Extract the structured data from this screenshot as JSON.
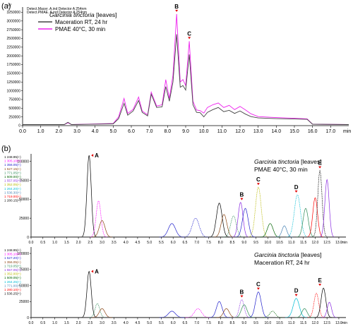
{
  "chart_data": [
    {
      "panel": "(a)",
      "type": "line",
      "xunit": "min",
      "xlim": [
        0,
        18
      ],
      "xticks": [
        "0.0",
        "1.0",
        "2.0",
        "3.0",
        "4.0",
        "5.0",
        "6.0",
        "7.0",
        "8.0",
        "9.0",
        "10.0",
        "11.0",
        "12.0",
        "13.0",
        "14.0",
        "15.0",
        "16.0",
        "17.0"
      ],
      "yunit": "uV",
      "ylim": [
        0,
        3400000
      ],
      "yticks": [
        "0",
        "250000",
        "500000",
        "750000",
        "1000000",
        "1250000",
        "1500000",
        "1750000",
        "2000000",
        "2250000",
        "2500000",
        "2750000",
        "3000000",
        "3250000"
      ],
      "header_lines": [
        "Detect.Macer. A.ind Detector A 254nm",
        "Detect.PMAE. A.ind Detector A 254nm"
      ],
      "legend_title_species": "Garcinia tinctoria",
      "legend_title_rest": " [leaves]",
      "series": [
        {
          "name": "Maceration RT, 24 hr",
          "color": "#444444",
          "x": [
            0,
            2.3,
            2.5,
            2.7,
            5.0,
            5.3,
            5.6,
            5.8,
            6.1,
            6.4,
            6.6,
            6.9,
            7.1,
            7.4,
            7.7,
            7.9,
            8.1,
            8.3,
            8.5,
            8.7,
            8.85,
            9.0,
            9.2,
            9.4,
            9.6,
            9.8,
            10.0,
            10.2,
            10.5,
            10.8,
            11.1,
            11.4,
            11.7,
            12.0,
            12.3,
            12.6,
            13.0,
            14.0,
            15.0,
            15.7,
            16.0,
            18.0
          ],
          "y": [
            30000,
            30000,
            95000,
            30000,
            50000,
            200000,
            640000,
            300000,
            420000,
            720000,
            380000,
            280000,
            900000,
            520000,
            540000,
            1120000,
            700000,
            1250000,
            2620000,
            1100000,
            1150000,
            1020000,
            2040000,
            600000,
            380000,
            370000,
            250000,
            380000,
            460000,
            520000,
            400000,
            440000,
            350000,
            420000,
            330000,
            260000,
            220000,
            200000,
            190000,
            180000,
            40000,
            30000
          ]
        },
        {
          "name": "PMAE 40°C, 30 min",
          "color": "#ee22ee",
          "x": [
            0,
            2.3,
            2.5,
            2.7,
            5.0,
            5.3,
            5.6,
            5.8,
            6.1,
            6.4,
            6.6,
            6.9,
            7.1,
            7.4,
            7.7,
            7.9,
            8.1,
            8.3,
            8.5,
            8.7,
            8.85,
            9.0,
            9.2,
            9.4,
            9.6,
            9.8,
            10.0,
            10.2,
            10.5,
            10.8,
            11.1,
            11.4,
            11.7,
            12.0,
            12.3,
            12.6,
            13.0,
            14.0,
            15.0,
            15.7,
            16.0,
            18.0
          ],
          "y": [
            30000,
            30000,
            80000,
            30000,
            60000,
            250000,
            780000,
            350000,
            470000,
            820000,
            420000,
            310000,
            960000,
            560000,
            600000,
            1320000,
            780000,
            1450000,
            3200000,
            1250000,
            1320000,
            1150000,
            2420000,
            700000,
            450000,
            430000,
            360000,
            520000,
            600000,
            650000,
            520000,
            580000,
            460000,
            550000,
            450000,
            340000,
            260000,
            230000,
            210000,
            195000,
            40000,
            30000
          ]
        }
      ],
      "annotations": [
        {
          "label": "B",
          "x": 8.5
        },
        {
          "label": "C",
          "x": 9.2
        }
      ]
    },
    {
      "panel": "(b)",
      "type": "line",
      "xunit": "min",
      "xlim": [
        0,
        13.3
      ],
      "xticks": [
        "0.0",
        "0.5",
        "1.0",
        "1.5",
        "2.0",
        "2.5",
        "3.0",
        "3.5",
        "4.0",
        "4.5",
        "5.0",
        "5.5",
        "6.0",
        "6.5",
        "7.0",
        "7.5",
        "8.0",
        "8.5",
        "9.0",
        "9.5",
        "10.0",
        "10.5",
        "11.0",
        "11.5",
        "12.0",
        "12.5",
        "13.0"
      ],
      "subplots": [
        {
          "ylim": [
            0,
            110000
          ],
          "yticks": [
            "0",
            "25000",
            "50000",
            "75000",
            "100000"
          ],
          "legend_title_species": "Garcinia tinctoria",
          "legend_title_rest": " [leaves]",
          "legend_title_line2": "PMAE 40°C, 30 min",
          "mz_list": [
            {
              "label": "1 248.95(+)",
              "color": "#000000"
            },
            {
              "label": "1 305.10(+)",
              "color": "#ff00ff"
            },
            {
              "label": "1 356.05(+)",
              "color": "#2222cc"
            },
            {
              "label": "1 527.15(+)",
              "color": "#8b4513"
            },
            {
              "label": "1 771.05(+)",
              "color": "#2e8b57"
            },
            {
              "label": "1 509.00(+)",
              "color": "#006400"
            },
            {
              "label": "1 557.05(+)",
              "color": "#8a2be2"
            },
            {
              "label": "1 352.05(+)",
              "color": "#b8b800"
            },
            {
              "label": "1 264.20(+)",
              "color": "#00bcd4"
            },
            {
              "label": "1 536.30(+)",
              "color": "#4682b4"
            },
            {
              "label": "1 719.00(+)",
              "color": "#ff0000"
            },
            {
              "label": "1 280.15(+)",
              "color": "#000000"
            }
          ],
          "peaks": [
            {
              "rt": 2.45,
              "height": 108000,
              "width": 0.09,
              "color": "#000000"
            },
            {
              "rt": 2.85,
              "height": 48000,
              "width": 0.1,
              "color": "#ff00ff"
            },
            {
              "rt": 3.0,
              "height": 22000,
              "width": 0.12,
              "color": "#8b4513"
            },
            {
              "rt": 5.95,
              "height": 18000,
              "width": 0.15,
              "color": "#2222cc"
            },
            {
              "rt": 6.95,
              "height": 25000,
              "width": 0.15,
              "color": "#2222cc"
            },
            {
              "rt": 7.95,
              "height": 45000,
              "width": 0.12,
              "color": "#000000"
            },
            {
              "rt": 8.15,
              "height": 30000,
              "width": 0.12,
              "color": "#8b4513"
            },
            {
              "rt": 8.55,
              "height": 28000,
              "width": 0.12,
              "color": "#2e8b57"
            },
            {
              "rt": 8.85,
              "height": 46000,
              "width": 0.1,
              "color": "#8a2be2"
            },
            {
              "rt": 9.05,
              "height": 38000,
              "width": 0.12,
              "color": "#2222cc"
            },
            {
              "rt": 9.6,
              "height": 66000,
              "width": 0.12,
              "color": "#b8b800"
            },
            {
              "rt": 10.1,
              "height": 18000,
              "width": 0.12,
              "color": "#006400"
            },
            {
              "rt": 10.7,
              "height": 15000,
              "width": 0.1,
              "color": "#4682b4"
            },
            {
              "rt": 11.25,
              "height": 56000,
              "width": 0.13,
              "color": "#00bcd4"
            },
            {
              "rt": 11.6,
              "height": 38000,
              "width": 0.11,
              "color": "#2e8b57"
            },
            {
              "rt": 12.0,
              "height": 52000,
              "width": 0.1,
              "color": "#ff0000"
            },
            {
              "rt": 12.2,
              "height": 88000,
              "width": 0.09,
              "color": "#000000"
            },
            {
              "rt": 12.5,
              "height": 76000,
              "width": 0.09,
              "color": "#8a2be2"
            }
          ],
          "annotations": [
            {
              "label": "A",
              "x": 2.45
            },
            {
              "label": "B",
              "x": 8.9
            },
            {
              "label": "C",
              "x": 9.6
            },
            {
              "label": "D",
              "x": 11.2
            },
            {
              "label": "E",
              "x": 12.2
            }
          ]
        },
        {
          "ylim": [
            0,
            110000
          ],
          "yticks": [
            "0",
            "25000",
            "50000",
            "75000",
            "100000"
          ],
          "legend_title_species": "Garcinia tinctoria",
          "legend_title_rest": " [leaves]",
          "legend_title_line2": "Maceration RT, 24 hr",
          "mz_list": [
            {
              "label": "1 248.95(+)",
              "color": "#000000"
            },
            {
              "label": "1 305.10(+)",
              "color": "#ff00ff"
            },
            {
              "label": "1 527.20(+)",
              "color": "#2222cc"
            },
            {
              "label": "1 356.05(+)",
              "color": "#8b4513"
            },
            {
              "label": "1 719.05(+)",
              "color": "#2e8b57"
            },
            {
              "label": "1 557.05(+)",
              "color": "#8a2be2"
            },
            {
              "label": "1 352.00(+)",
              "color": "#b8b800"
            },
            {
              "label": "1 509.05(+)",
              "color": "#006400"
            },
            {
              "label": "1 264.25(+)",
              "color": "#00bcd4"
            },
            {
              "label": "1 771.00(+)",
              "color": "#4682b4"
            },
            {
              "label": "1 280.10(+)",
              "color": "#ff0000"
            },
            {
              "label": "1 536.25(+)",
              "color": "#000000"
            }
          ],
          "peaks": [
            {
              "rt": 2.45,
              "height": 72000,
              "width": 0.09,
              "color": "#000000"
            },
            {
              "rt": 2.8,
              "height": 22000,
              "width": 0.1,
              "color": "#2e8b57"
            },
            {
              "rt": 3.0,
              "height": 14000,
              "width": 0.12,
              "color": "#8b4513"
            },
            {
              "rt": 5.95,
              "height": 10000,
              "width": 0.15,
              "color": "#2222cc"
            },
            {
              "rt": 7.05,
              "height": 14000,
              "width": 0.15,
              "color": "#ff00ff"
            },
            {
              "rt": 7.95,
              "height": 25000,
              "width": 0.12,
              "color": "#2222cc"
            },
            {
              "rt": 8.25,
              "height": 14000,
              "width": 0.12,
              "color": "#8b4513"
            },
            {
              "rt": 8.9,
              "height": 28000,
              "width": 0.1,
              "color": "#8a2be2"
            },
            {
              "rt": 9.0,
              "height": 20000,
              "width": 0.12,
              "color": "#2e8b57"
            },
            {
              "rt": 9.6,
              "height": 40000,
              "width": 0.12,
              "color": "#2222cc"
            },
            {
              "rt": 10.2,
              "height": 10000,
              "width": 0.12,
              "color": "#006400"
            },
            {
              "rt": 11.2,
              "height": 30000,
              "width": 0.13,
              "color": "#00bcd4"
            },
            {
              "rt": 11.55,
              "height": 14000,
              "width": 0.11,
              "color": "#2e8b57"
            },
            {
              "rt": 12.05,
              "height": 38000,
              "width": 0.1,
              "color": "#ff0000"
            },
            {
              "rt": 12.35,
              "height": 46000,
              "width": 0.1,
              "color": "#000000"
            },
            {
              "rt": 12.6,
              "height": 24000,
              "width": 0.09,
              "color": "#8a2be2"
            }
          ],
          "annotations": [
            {
              "label": "A",
              "x": 2.45
            },
            {
              "label": "B",
              "x": 8.9
            },
            {
              "label": "C",
              "x": 9.6
            },
            {
              "label": "D",
              "x": 11.2
            },
            {
              "label": "E",
              "x": 12.2
            }
          ]
        }
      ]
    }
  ]
}
